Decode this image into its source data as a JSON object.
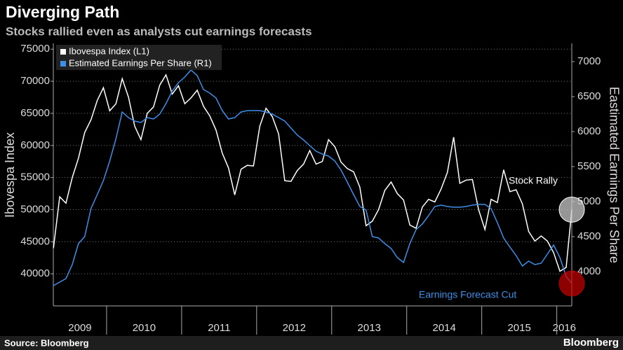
{
  "chart_data": {
    "type": "line",
    "title": "Diverging Path",
    "subtitle": "Stocks rallied even as analysts cut earnings forecasts",
    "y_label": "Ibovespa Index",
    "y2_label": "Eastimated Earnings Per Share",
    "source": "Source: Bloomberg",
    "brand": "Bloomberg",
    "annotations": [
      "Stock Rally",
      "Earnings Forecast Cut"
    ],
    "x": [
      2009.292,
      2009.375,
      2009.458,
      2009.542,
      2009.625,
      2009.708,
      2009.792,
      2009.875,
      2009.958,
      2010.042,
      2010.125,
      2010.208,
      2010.292,
      2010.375,
      2010.458,
      2010.542,
      2010.625,
      2010.708,
      2010.792,
      2010.875,
      2010.958,
      2011.042,
      2011.125,
      2011.208,
      2011.292,
      2011.375,
      2011.458,
      2011.542,
      2011.625,
      2011.708,
      2011.792,
      2011.875,
      2011.958,
      2012.042,
      2012.125,
      2012.208,
      2012.292,
      2012.375,
      2012.458,
      2012.542,
      2012.625,
      2012.708,
      2012.792,
      2012.875,
      2012.958,
      2013.042,
      2013.125,
      2013.208,
      2013.292,
      2013.375,
      2013.458,
      2013.542,
      2013.625,
      2013.708,
      2013.792,
      2013.875,
      2013.958,
      2014.042,
      2014.125,
      2014.208,
      2014.292,
      2014.375,
      2014.458,
      2014.542,
      2014.625,
      2014.708,
      2014.792,
      2014.875,
      2014.958,
      2015.042,
      2015.125,
      2015.208,
      2015.292,
      2015.375,
      2015.458,
      2015.542,
      2015.625,
      2015.708,
      2015.792,
      2015.875,
      2015.958,
      2016.042,
      2016.125,
      2016.2
    ],
    "series": [
      {
        "name": "Ibovespa Index (L1)",
        "color": "#ffffff",
        "axis": "y",
        "values": [
          44000,
          52000,
          51000,
          55000,
          58000,
          62000,
          64000,
          67000,
          69000,
          65400,
          66500,
          70400,
          67500,
          63000,
          60900,
          65000,
          66000,
          69400,
          71000,
          68000,
          69300,
          66500,
          67400,
          68600,
          66100,
          64600,
          62400,
          58800,
          56500,
          52300,
          56300,
          56900,
          56800,
          63000,
          65800,
          64500,
          61800,
          54500,
          54400,
          56100,
          57100,
          59200,
          57100,
          57500,
          60900,
          59800,
          57400,
          56400,
          55900,
          53500,
          47500,
          48200,
          50000,
          53000,
          54300,
          52500,
          51500,
          47600,
          47100,
          50400,
          51600,
          51200,
          53200,
          55800,
          61300,
          54100,
          54600,
          54700,
          50000,
          46900,
          51600,
          51100,
          56200,
          52800,
          53100,
          50900,
          46600,
          45100,
          45900,
          45100,
          43300,
          40400,
          41000,
          50000
        ]
      },
      {
        "name": "Estimated Earnings Per Share (R1)",
        "color": "#3d8fe8",
        "axis": "y2",
        "values": [
          3800,
          3850,
          3900,
          4100,
          4400,
          4500,
          4900,
          5100,
          5300,
          5580,
          5900,
          6280,
          6200,
          6150,
          6130,
          6200,
          6180,
          6250,
          6400,
          6580,
          6700,
          6780,
          6880,
          6800,
          6600,
          6550,
          6480,
          6300,
          6180,
          6200,
          6280,
          6300,
          6300,
          6300,
          6280,
          6250,
          6200,
          6150,
          6050,
          5950,
          5880,
          5800,
          5720,
          5680,
          5650,
          5580,
          5450,
          5280,
          5100,
          4930,
          4880,
          4500,
          4480,
          4400,
          4330,
          4200,
          4130,
          4400,
          4600,
          4680,
          4800,
          4930,
          4950,
          4930,
          4920,
          4920,
          4930,
          4950,
          4960,
          4960,
          4900,
          4700,
          4480,
          4350,
          4230,
          4080,
          4150,
          4100,
          4120,
          4250,
          4380,
          4200,
          3930,
          3830
        ]
      }
    ],
    "xlim": [
      2009.29,
      2016.2
    ],
    "xticks": [
      {
        "value": 2009.5,
        "label": "2009"
      },
      {
        "value": 2010.5,
        "label": "2010"
      },
      {
        "value": 2011.5,
        "label": "2011"
      },
      {
        "value": 2012.5,
        "label": "2012"
      },
      {
        "value": 2013.5,
        "label": "2013"
      },
      {
        "value": 2014.5,
        "label": "2014"
      },
      {
        "value": 2015.5,
        "label": "2015"
      },
      {
        "value": 2016.5,
        "label": "2016"
      }
    ],
    "ylim": [
      35000,
      75900
    ],
    "yticks": [
      40000,
      45000,
      50000,
      55000,
      60000,
      65000,
      70000,
      75000
    ],
    "y2lim": [
      3510,
      7260
    ],
    "y2ticks": [
      4000,
      4500,
      5000,
      5500,
      6000,
      6500,
      7000
    ],
    "grid": true,
    "legend": "top-left"
  }
}
